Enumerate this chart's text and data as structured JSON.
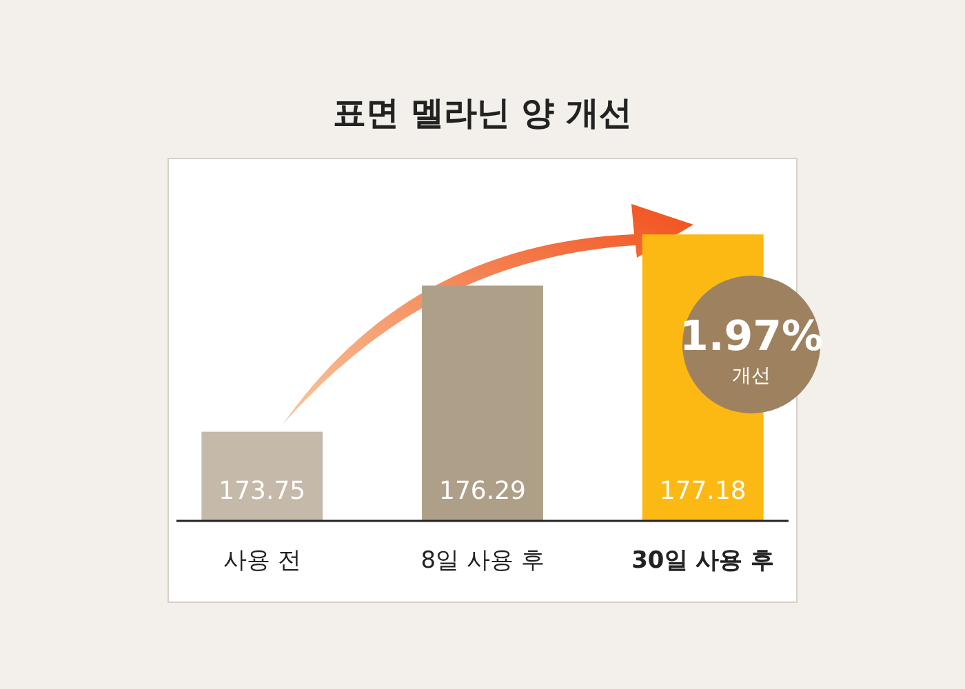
{
  "chart_data": {
    "type": "bar",
    "title": "표면 멜라닌 양 개선",
    "categories": [
      "사용 전",
      "8일 사용 후",
      "30일 사용 후"
    ],
    "values": [
      173.75,
      176.29,
      177.18
    ],
    "colors": [
      "#c5b9a9",
      "#ae9f88",
      "#fdb913"
    ],
    "ylim": [
      172.2,
      178.5
    ],
    "data_labels": true,
    "annotations": [
      "1.97%",
      "개선"
    ]
  }
}
